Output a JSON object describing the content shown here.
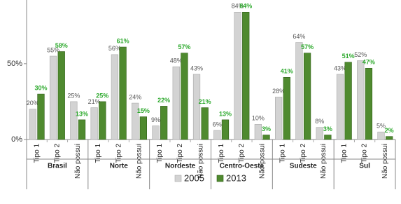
{
  "chart_data": {
    "type": "bar",
    "groups": [
      "Brasil",
      "Norte",
      "Nordeste",
      "Centro-Oeste",
      "Sudeste",
      "Sul"
    ],
    "categories": [
      "Tipo 1",
      "Tipo 2",
      "Não possui",
      "Tipo 1",
      "Tipo 2",
      "Não possui",
      "Tipo 1",
      "Tipo 2",
      "Não possui",
      "Tipo 1",
      "Tipo 2",
      "Não possui",
      "Tipo 1",
      "Tipo 2",
      "Não possui",
      "Tipo 1",
      "Tipo 2",
      "Não possui"
    ],
    "series": [
      {
        "name": "2005",
        "color": "#d3d3d3",
        "values": [
          20,
          55,
          25,
          21,
          56,
          24,
          9,
          48,
          43,
          6,
          84,
          10,
          28,
          64,
          8,
          43,
          52,
          5
        ],
        "value_labels": [
          "20%",
          "55%",
          "25%",
          "21%",
          "56%",
          "24%",
          "9%",
          "48%",
          "43%",
          "6%",
          "84%",
          "10%",
          "28%",
          "64%",
          "8%",
          "43%",
          "52%",
          "5%"
        ]
      },
      {
        "name": "2013",
        "color": "#4f8a2f",
        "values": [
          30,
          58,
          13,
          25,
          61,
          15,
          22,
          57,
          21,
          13,
          84,
          3,
          41,
          57,
          3,
          51,
          47,
          2
        ],
        "value_labels": [
          "30%",
          "58%",
          "13%",
          "25%",
          "61%",
          "15%",
          "22%",
          "57%",
          "21%",
          "13%",
          "84%",
          "3%",
          "41%",
          "57%",
          "3%",
          "51%",
          "47%",
          "2%"
        ]
      }
    ],
    "ylim": [
      0,
      92
    ],
    "yticks": [
      {
        "value": 0,
        "label": "0%"
      },
      {
        "value": 50,
        "label": "50%"
      }
    ],
    "grid": false
  }
}
